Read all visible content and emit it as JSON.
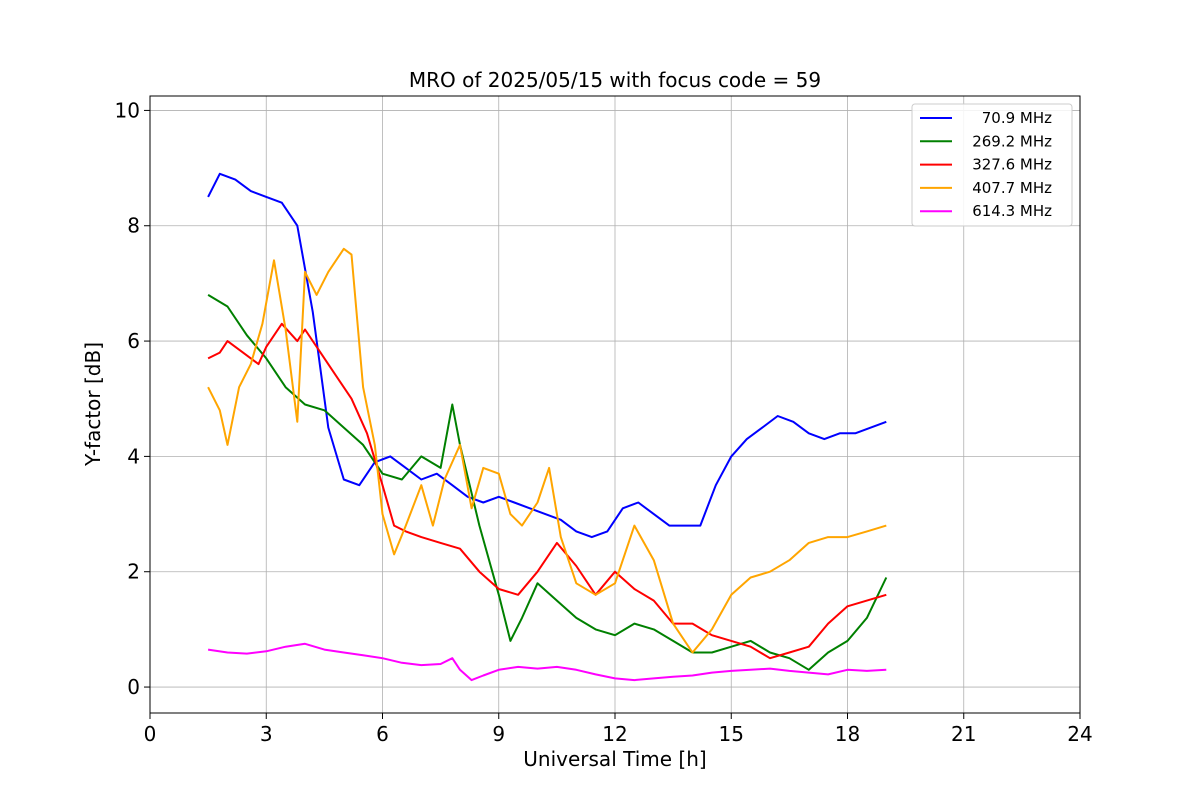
{
  "chart_data": {
    "type": "line",
    "title": "MRO of 2025/05/15 with focus code = 59",
    "xlabel": "Universal Time [h]",
    "ylabel": "Y-factor [dB]",
    "xlim": [
      0,
      24
    ],
    "ylim": [
      -0.45,
      10.25
    ],
    "xticks": [
      0,
      3,
      6,
      9,
      12,
      15,
      18,
      21,
      24
    ],
    "yticks": [
      0,
      2,
      4,
      6,
      8,
      10
    ],
    "grid": true,
    "legend_position": "top-right",
    "series": [
      {
        "name": "70.9 MHz",
        "color": "#0000ff",
        "x": [
          1.5,
          1.8,
          2.2,
          2.6,
          3.0,
          3.4,
          3.8,
          4.2,
          4.6,
          5.0,
          5.4,
          5.8,
          6.2,
          6.6,
          7.0,
          7.4,
          7.8,
          8.2,
          8.6,
          9.0,
          9.4,
          9.8,
          10.2,
          10.6,
          11.0,
          11.4,
          11.8,
          12.2,
          12.6,
          13.0,
          13.4,
          13.8,
          14.2,
          14.6,
          15.0,
          15.4,
          15.8,
          16.2,
          16.6,
          17.0,
          17.4,
          17.8,
          18.2,
          18.6,
          19.0
        ],
        "y": [
          8.5,
          8.9,
          8.8,
          8.6,
          8.5,
          8.4,
          8.0,
          6.5,
          4.5,
          3.6,
          3.5,
          3.9,
          4.0,
          3.8,
          3.6,
          3.7,
          3.5,
          3.3,
          3.2,
          3.3,
          3.2,
          3.1,
          3.0,
          2.9,
          2.7,
          2.6,
          2.7,
          3.1,
          3.2,
          3.0,
          2.8,
          2.8,
          2.8,
          3.5,
          4.0,
          4.3,
          4.5,
          4.7,
          4.6,
          4.4,
          4.3,
          4.4,
          4.4,
          4.5,
          4.6
        ]
      },
      {
        "name": "269.2 MHz",
        "color": "#008000",
        "x": [
          1.5,
          2.0,
          2.5,
          3.0,
          3.5,
          4.0,
          4.5,
          5.0,
          5.5,
          6.0,
          6.5,
          7.0,
          7.5,
          7.8,
          8.0,
          8.5,
          9.0,
          9.3,
          9.6,
          10.0,
          10.5,
          11.0,
          11.5,
          12.0,
          12.5,
          13.0,
          13.5,
          14.0,
          14.5,
          15.0,
          15.5,
          16.0,
          16.5,
          17.0,
          17.5,
          18.0,
          18.5,
          19.0
        ],
        "y": [
          6.8,
          6.6,
          6.1,
          5.7,
          5.2,
          4.9,
          4.8,
          4.5,
          4.2,
          3.7,
          3.6,
          4.0,
          3.8,
          4.9,
          4.2,
          2.8,
          1.6,
          0.8,
          1.2,
          1.8,
          1.5,
          1.2,
          1.0,
          0.9,
          1.1,
          1.0,
          0.8,
          0.6,
          0.6,
          0.7,
          0.8,
          0.6,
          0.5,
          0.3,
          0.6,
          0.8,
          1.2,
          1.9
        ]
      },
      {
        "name": "327.6 MHz",
        "color": "#ff0000",
        "x": [
          1.5,
          1.8,
          2.0,
          2.4,
          2.8,
          3.0,
          3.4,
          3.8,
          4.0,
          4.4,
          4.8,
          5.2,
          5.6,
          6.0,
          6.3,
          6.6,
          7.0,
          7.5,
          8.0,
          8.5,
          9.0,
          9.5,
          10.0,
          10.5,
          11.0,
          11.5,
          12.0,
          12.5,
          13.0,
          13.5,
          14.0,
          14.5,
          15.0,
          15.5,
          16.0,
          16.5,
          17.0,
          17.5,
          18.0,
          18.5,
          19.0
        ],
        "y": [
          5.7,
          5.8,
          6.0,
          5.8,
          5.6,
          5.9,
          6.3,
          6.0,
          6.2,
          5.8,
          5.4,
          5.0,
          4.4,
          3.5,
          2.8,
          2.7,
          2.6,
          2.5,
          2.4,
          2.0,
          1.7,
          1.6,
          2.0,
          2.5,
          2.1,
          1.6,
          2.0,
          1.7,
          1.5,
          1.1,
          1.1,
          0.9,
          0.8,
          0.7,
          0.5,
          0.6,
          0.7,
          1.1,
          1.4,
          1.5,
          1.6
        ]
      },
      {
        "name": "407.7 MHz",
        "color": "#ffa500",
        "x": [
          1.5,
          1.8,
          2.0,
          2.3,
          2.6,
          2.9,
          3.2,
          3.5,
          3.8,
          4.0,
          4.3,
          4.6,
          5.0,
          5.2,
          5.5,
          5.8,
          6.0,
          6.3,
          6.6,
          7.0,
          7.3,
          7.6,
          8.0,
          8.3,
          8.6,
          9.0,
          9.3,
          9.6,
          10.0,
          10.3,
          10.6,
          11.0,
          11.5,
          12.0,
          12.5,
          13.0,
          13.5,
          14.0,
          14.5,
          15.0,
          15.5,
          16.0,
          16.5,
          17.0,
          17.5,
          18.0,
          18.5,
          19.0
        ],
        "y": [
          5.2,
          4.8,
          4.2,
          5.2,
          5.6,
          6.3,
          7.4,
          6.2,
          4.6,
          7.2,
          6.8,
          7.2,
          7.6,
          7.5,
          5.2,
          4.2,
          3.0,
          2.3,
          2.8,
          3.5,
          2.8,
          3.6,
          4.2,
          3.1,
          3.8,
          3.7,
          3.0,
          2.8,
          3.2,
          3.8,
          2.6,
          1.8,
          1.6,
          1.8,
          2.8,
          2.2,
          1.1,
          0.6,
          1.0,
          1.6,
          1.9,
          2.0,
          2.2,
          2.5,
          2.6,
          2.6,
          2.7,
          2.8
        ]
      },
      {
        "name": "614.3 MHz",
        "color": "#ff00ff",
        "x": [
          1.5,
          2.0,
          2.5,
          3.0,
          3.5,
          4.0,
          4.5,
          5.0,
          5.5,
          6.0,
          6.5,
          7.0,
          7.5,
          7.8,
          8.0,
          8.3,
          8.6,
          9.0,
          9.5,
          10.0,
          10.5,
          11.0,
          11.5,
          12.0,
          12.5,
          13.0,
          13.5,
          14.0,
          14.5,
          15.0,
          15.5,
          16.0,
          16.5,
          17.0,
          17.5,
          18.0,
          18.5,
          19.0
        ],
        "y": [
          0.65,
          0.6,
          0.58,
          0.62,
          0.7,
          0.75,
          0.65,
          0.6,
          0.55,
          0.5,
          0.42,
          0.38,
          0.4,
          0.5,
          0.3,
          0.12,
          0.2,
          0.3,
          0.35,
          0.32,
          0.35,
          0.3,
          0.22,
          0.15,
          0.12,
          0.15,
          0.18,
          0.2,
          0.25,
          0.28,
          0.3,
          0.32,
          0.28,
          0.25,
          0.22,
          0.3,
          0.28,
          0.3
        ]
      }
    ]
  }
}
